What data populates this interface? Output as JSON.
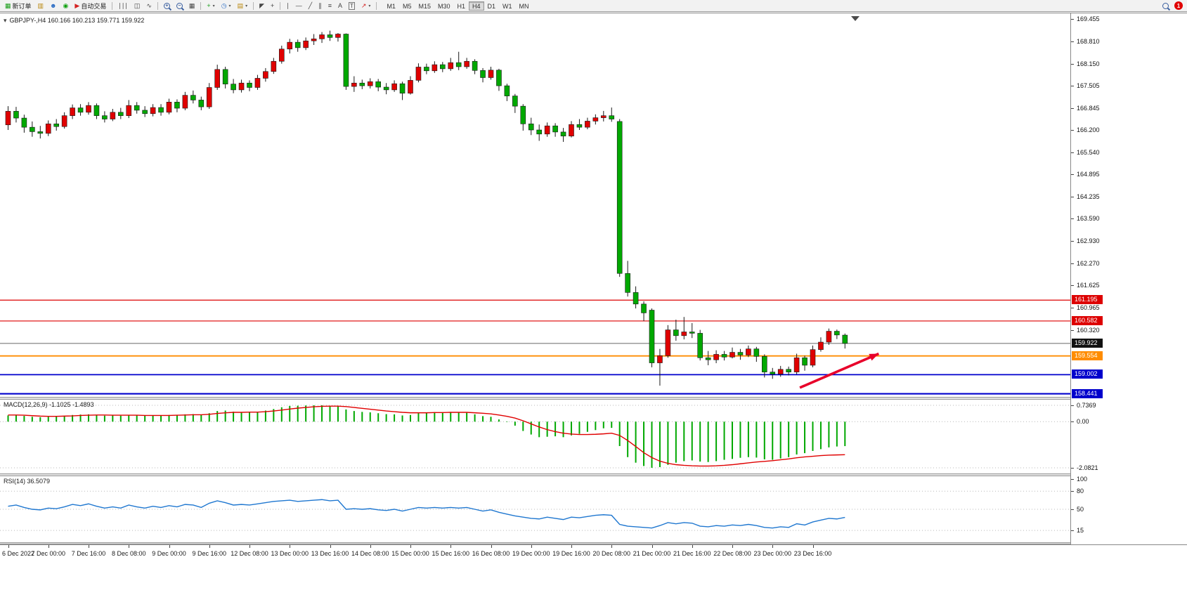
{
  "toolbar": {
    "new_order_label": "新订单",
    "autotrade_label": "自动交易",
    "badge_count": "1",
    "timeframes": [
      {
        "label": "M1",
        "active": false
      },
      {
        "label": "M5",
        "active": false
      },
      {
        "label": "M15",
        "active": false
      },
      {
        "label": "M30",
        "active": false
      },
      {
        "label": "H1",
        "active": false
      },
      {
        "label": "H4",
        "active": true
      },
      {
        "label": "D1",
        "active": false
      },
      {
        "label": "W1",
        "active": false
      },
      {
        "label": "MN",
        "active": false
      }
    ]
  },
  "icons": {
    "symbol_dropdown": "▾",
    "new_order": "▦",
    "chart_window": "▥",
    "profile": "☻",
    "market_watch": "◉",
    "autotrade_play": "▶",
    "bar_chart": "∣∣∣",
    "candle_chart": "◫",
    "line_chart": "∿",
    "zoom_in_sign": "+",
    "zoom_out_sign": "−",
    "tile_windows": "▦",
    "add_indicator": "+",
    "period_clock": "◷",
    "template_chart": "▤",
    "dropdown": "▾",
    "cursor": "◤",
    "crosshair": "+",
    "vertical_line": "∣",
    "horizontal_line": "—",
    "trend_line": "╱",
    "channel": "∥",
    "fibonacci": "≡",
    "text_tool": "A",
    "text_label_tool": "T",
    "arrows_tool": "↗"
  },
  "chart": {
    "symbol_line": "GBPJPY-,H4 160.166 160.213 159.771 159.922",
    "price_axis_labels": [
      "169.455",
      "168.810",
      "168.150",
      "167.505",
      "166.845",
      "166.200",
      "165.540",
      "164.895",
      "164.235",
      "163.590",
      "162.930",
      "162.270",
      "161.625",
      "160.965",
      "160.320"
    ]
  },
  "macd_panel": {
    "label": "MACD(12,26,9) -1.1025 -1.4893",
    "axis_labels": [
      "0.7369",
      "0.00",
      "-2.0821"
    ]
  },
  "rsi_panel": {
    "label": "RSI(14) 36.5079",
    "axis_labels": [
      "100",
      "80",
      "50",
      "15"
    ]
  },
  "time_axis_labels": [
    "6 Dec 2022",
    "7 Dec 00:00",
    "7 Dec 16:00",
    "8 Dec 08:00",
    "9 Dec 00:00",
    "9 Dec 16:00",
    "12 Dec 08:00",
    "13 Dec 00:00",
    "13 Dec 16:00",
    "14 Dec 08:00",
    "15 Dec 00:00",
    "15 Dec 16:00",
    "16 Dec 08:00",
    "19 Dec 00:00",
    "19 Dec 16:00",
    "20 Dec 08:00",
    "21 Dec 00:00",
    "21 Dec 16:00",
    "22 Dec 08:00",
    "23 Dec 00:00",
    "23 Dec 16:00"
  ],
  "colors": {
    "up_candle": "#e00000",
    "down_candle": "#00a800",
    "macd_histogram": "#00a800",
    "macd_signal": "#e00000",
    "rsi_line": "#1f77d0"
  },
  "chart_data": {
    "type": "candlestick",
    "symbol": "GBPJPY-",
    "timeframe": "H4",
    "last_quote": {
      "open": 160.166,
      "high": 160.213,
      "low": 159.771,
      "close": 159.922
    },
    "visible_price_range": [
      158.35,
      169.63
    ],
    "candles_ohlc": [
      [
        166.35,
        166.9,
        166.2,
        166.75
      ],
      [
        166.75,
        166.88,
        166.42,
        166.55
      ],
      [
        166.55,
        166.65,
        166.12,
        166.28
      ],
      [
        166.28,
        166.45,
        166.0,
        166.15
      ],
      [
        166.15,
        166.32,
        165.95,
        166.1
      ],
      [
        166.1,
        166.48,
        166.02,
        166.38
      ],
      [
        166.38,
        166.52,
        166.18,
        166.3
      ],
      [
        166.3,
        166.72,
        166.24,
        166.62
      ],
      [
        166.62,
        166.95,
        166.52,
        166.85
      ],
      [
        166.85,
        166.96,
        166.62,
        166.72
      ],
      [
        166.72,
        167.02,
        166.65,
        166.92
      ],
      [
        166.92,
        166.98,
        166.52,
        166.62
      ],
      [
        166.62,
        166.75,
        166.42,
        166.52
      ],
      [
        166.52,
        166.82,
        166.46,
        166.72
      ],
      [
        166.72,
        166.85,
        166.52,
        166.62
      ],
      [
        166.62,
        167.08,
        166.55,
        166.92
      ],
      [
        166.92,
        167.02,
        166.68,
        166.78
      ],
      [
        166.78,
        166.9,
        166.58,
        166.68
      ],
      [
        166.68,
        166.96,
        166.6,
        166.86
      ],
      [
        166.86,
        166.96,
        166.62,
        166.72
      ],
      [
        166.72,
        167.12,
        166.66,
        167.02
      ],
      [
        167.02,
        167.1,
        166.72,
        166.84
      ],
      [
        166.84,
        167.32,
        166.78,
        167.22
      ],
      [
        167.22,
        167.36,
        166.98,
        167.08
      ],
      [
        167.08,
        167.18,
        166.78,
        166.88
      ],
      [
        166.88,
        167.58,
        166.82,
        167.45
      ],
      [
        167.45,
        168.12,
        167.38,
        167.98
      ],
      [
        167.98,
        168.06,
        167.42,
        167.55
      ],
      [
        167.55,
        167.7,
        167.28,
        167.38
      ],
      [
        167.38,
        167.68,
        167.3,
        167.58
      ],
      [
        167.58,
        167.66,
        167.34,
        167.45
      ],
      [
        167.45,
        167.82,
        167.38,
        167.72
      ],
      [
        167.72,
        168.02,
        167.62,
        167.92
      ],
      [
        167.92,
        168.32,
        167.85,
        168.22
      ],
      [
        168.22,
        168.68,
        168.15,
        168.58
      ],
      [
        168.58,
        168.88,
        168.45,
        168.78
      ],
      [
        168.78,
        168.86,
        168.5,
        168.62
      ],
      [
        168.62,
        168.92,
        168.55,
        168.82
      ],
      [
        168.82,
        169.02,
        168.7,
        168.88
      ],
      [
        168.88,
        169.08,
        168.76,
        169.0
      ],
      [
        169.0,
        169.12,
        168.82,
        168.92
      ],
      [
        168.92,
        169.05,
        168.8,
        169.02
      ],
      [
        169.02,
        169.04,
        167.38,
        167.48
      ],
      [
        167.48,
        167.78,
        167.32,
        167.58
      ],
      [
        167.58,
        167.68,
        167.4,
        167.5
      ],
      [
        167.5,
        167.72,
        167.42,
        167.62
      ],
      [
        167.62,
        167.7,
        167.34,
        167.46
      ],
      [
        167.46,
        167.58,
        167.25,
        167.38
      ],
      [
        167.38,
        167.66,
        167.32,
        167.56
      ],
      [
        167.56,
        167.62,
        167.08,
        167.28
      ],
      [
        167.28,
        167.78,
        167.24,
        167.66
      ],
      [
        167.66,
        168.16,
        167.6,
        168.05
      ],
      [
        168.05,
        168.15,
        167.84,
        167.94
      ],
      [
        167.94,
        168.22,
        167.88,
        168.12
      ],
      [
        168.12,
        168.2,
        167.9,
        168.0
      ],
      [
        168.0,
        168.32,
        167.94,
        168.18
      ],
      [
        168.18,
        168.5,
        167.96,
        168.06
      ],
      [
        168.06,
        168.32,
        168.0,
        168.22
      ],
      [
        168.22,
        168.28,
        167.84,
        167.95
      ],
      [
        167.95,
        168.02,
        167.6,
        167.74
      ],
      [
        167.74,
        168.06,
        167.68,
        167.96
      ],
      [
        167.96,
        168.0,
        167.35,
        167.5
      ],
      [
        167.5,
        167.56,
        167.05,
        167.2
      ],
      [
        167.2,
        167.26,
        166.7,
        166.9
      ],
      [
        166.9,
        166.96,
        166.18,
        166.38
      ],
      [
        166.38,
        166.56,
        166.05,
        166.2
      ],
      [
        166.2,
        166.36,
        165.88,
        166.08
      ],
      [
        166.08,
        166.42,
        166.0,
        166.32
      ],
      [
        166.32,
        166.4,
        166.0,
        166.14
      ],
      [
        166.14,
        166.26,
        165.85,
        166.02
      ],
      [
        166.02,
        166.46,
        165.98,
        166.36
      ],
      [
        166.36,
        166.52,
        166.2,
        166.28
      ],
      [
        166.28,
        166.56,
        166.22,
        166.46
      ],
      [
        166.46,
        166.66,
        166.36,
        166.56
      ],
      [
        166.56,
        166.76,
        166.45,
        166.62
      ],
      [
        166.62,
        166.86,
        166.44,
        166.52
      ],
      [
        166.45,
        166.52,
        161.88,
        161.98
      ],
      [
        161.98,
        162.35,
        161.3,
        161.42
      ],
      [
        161.42,
        161.6,
        160.95,
        161.08
      ],
      [
        161.08,
        161.16,
        160.58,
        160.82
      ],
      [
        160.9,
        160.95,
        159.22,
        159.35
      ],
      [
        159.35,
        159.76,
        158.68,
        159.56
      ],
      [
        159.56,
        160.46,
        159.5,
        160.32
      ],
      [
        160.32,
        160.62,
        160.0,
        160.15
      ],
      [
        160.15,
        160.7,
        160.04,
        160.26
      ],
      [
        160.26,
        160.52,
        160.08,
        160.22
      ],
      [
        160.22,
        160.32,
        159.42,
        159.5
      ],
      [
        159.5,
        159.7,
        159.28,
        159.44
      ],
      [
        159.44,
        159.72,
        159.34,
        159.6
      ],
      [
        159.6,
        159.7,
        159.42,
        159.52
      ],
      [
        159.52,
        159.8,
        159.48,
        159.66
      ],
      [
        159.66,
        159.76,
        159.44,
        159.58
      ],
      [
        159.58,
        159.86,
        159.52,
        159.76
      ],
      [
        159.76,
        159.82,
        159.38,
        159.54
      ],
      [
        159.54,
        159.6,
        158.92,
        159.08
      ],
      [
        159.08,
        159.2,
        158.88,
        159.02
      ],
      [
        159.02,
        159.26,
        158.94,
        159.16
      ],
      [
        159.16,
        159.24,
        158.98,
        159.08
      ],
      [
        159.08,
        159.62,
        159.02,
        159.5
      ],
      [
        159.5,
        159.56,
        159.12,
        159.28
      ],
      [
        159.28,
        159.86,
        159.22,
        159.74
      ],
      [
        159.74,
        160.1,
        159.68,
        159.96
      ],
      [
        159.96,
        160.36,
        159.88,
        160.28
      ],
      [
        160.28,
        160.33,
        160.05,
        160.17
      ],
      [
        160.166,
        160.213,
        159.771,
        159.922
      ]
    ],
    "levels": [
      {
        "price": 161.195,
        "label": "161.195",
        "color": "#dd0000",
        "tag_bg": "#dd0000",
        "width": 1.2
      },
      {
        "price": 160.582,
        "label": "160.582",
        "color": "#dd0000",
        "tag_bg": "#dd0000",
        "width": 1.2
      },
      {
        "price": 159.922,
        "label": "159.922",
        "color": "#666666",
        "tag_bg": "#111111",
        "width": 1
      },
      {
        "price": 159.554,
        "label": "159.554",
        "color": "#ff8c00",
        "tag_bg": "#ff8c00",
        "width": 1.8
      },
      {
        "price": 159.002,
        "label": "159.002",
        "color": "#0000cc",
        "tag_bg": "#0000cc",
        "width": 1.8
      },
      {
        "price": 158.441,
        "label": "158.441",
        "color": "#0000cc",
        "tag_bg": "#0000cc",
        "width": 2.2
      }
    ],
    "annotation_arrow": {
      "from_bar": 98.7,
      "from_price": 158.62,
      "to_bar": 108.5,
      "to_price": 159.62,
      "color": "#e8002a"
    },
    "macd": {
      "params": "12,26,9",
      "current_main": -1.1025,
      "current_signal": -1.4893,
      "axis": [
        0.7369,
        0,
        -2.0821
      ],
      "histogram": [
        0.28,
        0.3,
        0.26,
        0.22,
        0.2,
        0.22,
        0.24,
        0.27,
        0.3,
        0.32,
        0.33,
        0.3,
        0.27,
        0.28,
        0.27,
        0.3,
        0.29,
        0.27,
        0.28,
        0.27,
        0.3,
        0.29,
        0.33,
        0.34,
        0.31,
        0.38,
        0.48,
        0.5,
        0.45,
        0.43,
        0.42,
        0.45,
        0.5,
        0.57,
        0.65,
        0.71,
        0.72,
        0.73,
        0.74,
        0.74,
        0.72,
        0.7,
        0.55,
        0.48,
        0.44,
        0.42,
        0.38,
        0.34,
        0.33,
        0.28,
        0.3,
        0.38,
        0.4,
        0.43,
        0.42,
        0.44,
        0.42,
        0.4,
        0.33,
        0.25,
        0.22,
        0.1,
        -0.02,
        -0.18,
        -0.42,
        -0.58,
        -0.7,
        -0.68,
        -0.66,
        -0.7,
        -0.62,
        -0.55,
        -0.46,
        -0.38,
        -0.3,
        -0.28,
        -1.1,
        -1.6,
        -1.85,
        -2.0,
        -2.08,
        -2.05,
        -1.95,
        -1.85,
        -1.78,
        -1.75,
        -1.8,
        -1.82,
        -1.78,
        -1.72,
        -1.68,
        -1.63,
        -1.6,
        -1.62,
        -1.7,
        -1.72,
        -1.66,
        -1.6,
        -1.48,
        -1.42,
        -1.32,
        -1.24,
        -1.16,
        -1.12,
        -1.1025
      ],
      "signal": [
        0.3,
        0.3,
        0.29,
        0.27,
        0.25,
        0.24,
        0.24,
        0.25,
        0.26,
        0.28,
        0.29,
        0.3,
        0.3,
        0.29,
        0.29,
        0.29,
        0.29,
        0.28,
        0.28,
        0.28,
        0.28,
        0.29,
        0.3,
        0.31,
        0.31,
        0.33,
        0.37,
        0.4,
        0.42,
        0.42,
        0.43,
        0.43,
        0.45,
        0.48,
        0.52,
        0.57,
        0.61,
        0.64,
        0.67,
        0.69,
        0.7,
        0.7,
        0.68,
        0.64,
        0.6,
        0.56,
        0.52,
        0.48,
        0.45,
        0.42,
        0.4,
        0.4,
        0.4,
        0.41,
        0.41,
        0.42,
        0.42,
        0.42,
        0.4,
        0.38,
        0.35,
        0.3,
        0.24,
        0.16,
        0.04,
        -0.1,
        -0.24,
        -0.36,
        -0.45,
        -0.52,
        -0.56,
        -0.58,
        -0.58,
        -0.57,
        -0.55,
        -0.52,
        -0.62,
        -0.85,
        -1.12,
        -1.4,
        -1.62,
        -1.78,
        -1.88,
        -1.94,
        -1.97,
        -1.99,
        -2.0,
        -2.0,
        -1.99,
        -1.97,
        -1.94,
        -1.9,
        -1.86,
        -1.82,
        -1.79,
        -1.76,
        -1.72,
        -1.68,
        -1.63,
        -1.59,
        -1.56,
        -1.53,
        -1.51,
        -1.5,
        -1.4893
      ]
    },
    "rsi": {
      "period": 14,
      "current": 36.5079,
      "levels": [
        80,
        50,
        15
      ],
      "values": [
        55,
        57,
        53,
        50,
        49,
        52,
        51,
        54,
        58,
        56,
        59,
        55,
        52,
        54,
        52,
        57,
        54,
        52,
        55,
        53,
        56,
        54,
        58,
        57,
        53,
        60,
        64,
        61,
        57,
        58,
        57,
        59,
        61,
        63,
        64,
        65,
        63,
        64,
        65,
        66,
        64,
        65,
        50,
        51,
        50,
        51,
        49,
        48,
        50,
        47,
        50,
        53,
        52,
        53,
        52,
        53,
        52,
        53,
        50,
        47,
        49,
        45,
        42,
        39,
        37,
        35,
        34,
        37,
        35,
        33,
        37,
        36,
        38,
        40,
        41,
        40,
        25,
        22,
        21,
        20,
        19,
        23,
        28,
        26,
        28,
        27,
        22,
        21,
        23,
        22,
        24,
        23,
        25,
        23,
        20,
        19,
        21,
        20,
        26,
        24,
        29,
        32,
        35,
        34,
        36.51
      ]
    }
  }
}
